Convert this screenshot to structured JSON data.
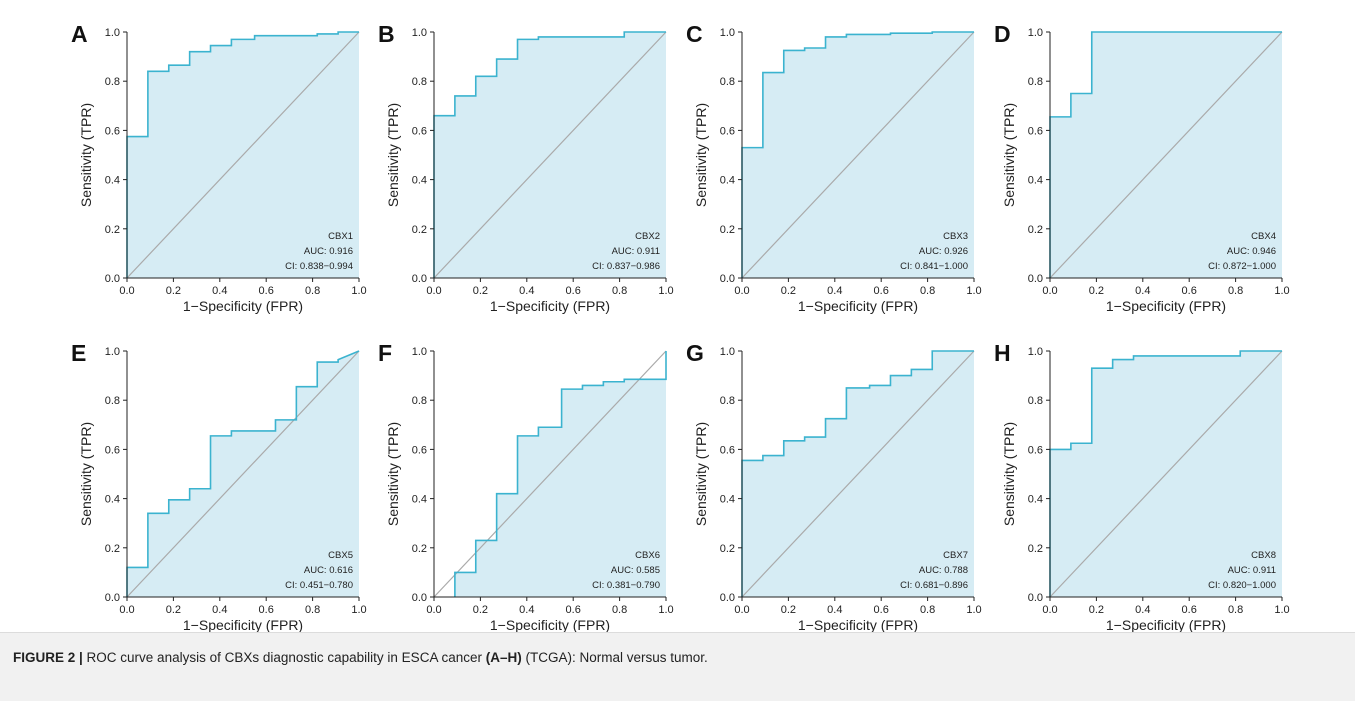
{
  "colors": {
    "curve": "#3bb3cf",
    "fill": "#d6ecf4",
    "diagonal": "#aaaaaa",
    "axis": "#222222"
  },
  "caption": {
    "label": "FIGURE 2 |",
    "text_before": " ROC curve analysis of CBXs diagnostic capability in ESCA cancer ",
    "bold_mid": "(A–H)",
    "text_after": " (TCGA): Normal versus tumor."
  },
  "chart_data": [
    {
      "type": "line",
      "panel": "A",
      "title": "",
      "xlabel": "1−Specificity (FPR)",
      "ylabel": "Sensitivity (TPR)",
      "xlim": [
        0,
        1
      ],
      "ylim": [
        0,
        1
      ],
      "xticks": [
        "0.0",
        "0.2",
        "0.4",
        "0.6",
        "0.8",
        "1.0"
      ],
      "yticks": [
        "0.0",
        "0.2",
        "0.4",
        "0.6",
        "0.8",
        "1.0"
      ],
      "series": [
        {
          "name": "CBX1",
          "x": [
            0,
            0,
            0.09,
            0.09,
            0.18,
            0.18,
            0.27,
            0.27,
            0.36,
            0.36,
            0.45,
            0.45,
            0.55,
            0.55,
            0.82,
            0.82,
            0.91,
            0.91,
            1.0
          ],
          "y": [
            0,
            0.575,
            0.575,
            0.84,
            0.84,
            0.865,
            0.865,
            0.92,
            0.92,
            0.945,
            0.945,
            0.97,
            0.97,
            0.985,
            0.985,
            0.992,
            0.992,
            1.0,
            1.0
          ]
        }
      ],
      "annotations": [
        "CBX1",
        "AUC: 0.916",
        "CI: 0.838−0.994"
      ]
    },
    {
      "type": "line",
      "panel": "B",
      "title": "",
      "xlabel": "1−Specificity (FPR)",
      "ylabel": "Sensitivity (TPR)",
      "xlim": [
        0,
        1
      ],
      "ylim": [
        0,
        1
      ],
      "xticks": [
        "0.0",
        "0.2",
        "0.4",
        "0.6",
        "0.8",
        "1.0"
      ],
      "yticks": [
        "0.0",
        "0.2",
        "0.4",
        "0.6",
        "0.8",
        "1.0"
      ],
      "series": [
        {
          "name": "CBX2",
          "x": [
            0,
            0,
            0.09,
            0.09,
            0.18,
            0.18,
            0.27,
            0.27,
            0.36,
            0.36,
            0.45,
            0.45,
            0.82,
            0.82,
            0.91,
            0.91,
            1.0
          ],
          "y": [
            0,
            0.66,
            0.66,
            0.74,
            0.74,
            0.82,
            0.82,
            0.89,
            0.89,
            0.97,
            0.97,
            0.98,
            0.98,
            1.0,
            1.0,
            1.0,
            1.0
          ]
        }
      ],
      "annotations": [
        "CBX2",
        "AUC: 0.911",
        "CI: 0.837−0.986"
      ]
    },
    {
      "type": "line",
      "panel": "C",
      "title": "",
      "xlabel": "1−Specificity (FPR)",
      "ylabel": "Sensitivity (TPR)",
      "xlim": [
        0,
        1
      ],
      "ylim": [
        0,
        1
      ],
      "xticks": [
        "0.0",
        "0.2",
        "0.4",
        "0.6",
        "0.8",
        "1.0"
      ],
      "yticks": [
        "0.0",
        "0.2",
        "0.4",
        "0.6",
        "0.8",
        "1.0"
      ],
      "series": [
        {
          "name": "CBX3",
          "x": [
            0,
            0,
            0.09,
            0.09,
            0.18,
            0.18,
            0.27,
            0.27,
            0.36,
            0.36,
            0.45,
            0.45,
            0.64,
            0.64,
            0.82,
            0.82,
            1.0
          ],
          "y": [
            0,
            0.53,
            0.53,
            0.835,
            0.835,
            0.925,
            0.925,
            0.935,
            0.935,
            0.98,
            0.98,
            0.99,
            0.99,
            0.995,
            0.995,
            1.0,
            1.0
          ]
        }
      ],
      "annotations": [
        "CBX3",
        "AUC: 0.926",
        "CI: 0.841−1.000"
      ]
    },
    {
      "type": "line",
      "panel": "D",
      "title": "",
      "xlabel": "1−Specificity (FPR)",
      "ylabel": "Sensitivity (TPR)",
      "xlim": [
        0,
        1
      ],
      "ylim": [
        0,
        1
      ],
      "xticks": [
        "0.0",
        "0.2",
        "0.4",
        "0.6",
        "0.8",
        "1.0"
      ],
      "yticks": [
        "0.0",
        "0.2",
        "0.4",
        "0.6",
        "0.8",
        "1.0"
      ],
      "series": [
        {
          "name": "CBX4",
          "x": [
            0,
            0,
            0.09,
            0.09,
            0.18,
            0.18,
            1.0
          ],
          "y": [
            0,
            0.655,
            0.655,
            0.75,
            0.75,
            1.0,
            1.0
          ]
        }
      ],
      "annotations": [
        "CBX4",
        "AUC: 0.946",
        "CI: 0.872−1.000"
      ]
    },
    {
      "type": "line",
      "panel": "E",
      "title": "",
      "xlabel": "1−Specificity (FPR)",
      "ylabel": "Sensitivity (TPR)",
      "xlim": [
        0,
        1
      ],
      "ylim": [
        0,
        1
      ],
      "xticks": [
        "0.0",
        "0.2",
        "0.4",
        "0.6",
        "0.8",
        "1.0"
      ],
      "yticks": [
        "0.0",
        "0.2",
        "0.4",
        "0.6",
        "0.8",
        "1.0"
      ],
      "series": [
        {
          "name": "CBX5",
          "x": [
            0,
            0,
            0.09,
            0.09,
            0.18,
            0.18,
            0.27,
            0.27,
            0.36,
            0.36,
            0.45,
            0.45,
            0.64,
            0.64,
            0.73,
            0.73,
            0.82,
            0.82,
            0.91,
            0.91,
            1.0
          ],
          "y": [
            0,
            0.12,
            0.12,
            0.34,
            0.34,
            0.395,
            0.395,
            0.44,
            0.44,
            0.655,
            0.655,
            0.675,
            0.675,
            0.72,
            0.72,
            0.855,
            0.855,
            0.955,
            0.955,
            0.965,
            1.0
          ]
        }
      ],
      "annotations": [
        "CBX5",
        "AUC: 0.616",
        "CI: 0.451−0.780"
      ]
    },
    {
      "type": "line",
      "panel": "F",
      "title": "",
      "xlabel": "1−Specificity (FPR)",
      "ylabel": "Sensitivity (TPR)",
      "xlim": [
        0,
        1
      ],
      "ylim": [
        0,
        1
      ],
      "xticks": [
        "0.0",
        "0.2",
        "0.4",
        "0.6",
        "0.8",
        "1.0"
      ],
      "yticks": [
        "0.0",
        "0.2",
        "0.4",
        "0.6",
        "0.8",
        "1.0"
      ],
      "series": [
        {
          "name": "CBX6",
          "x": [
            0.09,
            0.09,
            0.18,
            0.18,
            0.27,
            0.27,
            0.36,
            0.36,
            0.45,
            0.45,
            0.55,
            0.55,
            0.64,
            0.64,
            0.73,
            0.73,
            0.82,
            0.82,
            1.0,
            1.0
          ],
          "y": [
            0,
            0.1,
            0.1,
            0.23,
            0.23,
            0.42,
            0.42,
            0.655,
            0.655,
            0.69,
            0.69,
            0.845,
            0.845,
            0.86,
            0.86,
            0.875,
            0.875,
            0.885,
            0.885,
            1.0
          ]
        }
      ],
      "annotations": [
        "CBX6",
        "AUC: 0.585",
        "CI: 0.381−0.790"
      ]
    },
    {
      "type": "line",
      "panel": "G",
      "title": "",
      "xlabel": "1−Specificity (FPR)",
      "ylabel": "Sensitivity (TPR)",
      "xlim": [
        0,
        1
      ],
      "ylim": [
        0,
        1
      ],
      "xticks": [
        "0.0",
        "0.2",
        "0.4",
        "0.6",
        "0.8",
        "1.0"
      ],
      "yticks": [
        "0.0",
        "0.2",
        "0.4",
        "0.6",
        "0.8",
        "1.0"
      ],
      "series": [
        {
          "name": "CBX7",
          "x": [
            0,
            0,
            0.09,
            0.09,
            0.18,
            0.18,
            0.27,
            0.27,
            0.36,
            0.36,
            0.45,
            0.45,
            0.55,
            0.55,
            0.64,
            0.64,
            0.73,
            0.73,
            0.82,
            0.82,
            1.0
          ],
          "y": [
            0,
            0.555,
            0.555,
            0.575,
            0.575,
            0.635,
            0.635,
            0.65,
            0.65,
            0.725,
            0.725,
            0.85,
            0.85,
            0.86,
            0.86,
            0.9,
            0.9,
            0.925,
            0.925,
            1.0,
            1.0
          ]
        }
      ],
      "annotations": [
        "CBX7",
        "AUC: 0.788",
        "CI: 0.681−0.896"
      ]
    },
    {
      "type": "line",
      "panel": "H",
      "title": "",
      "xlabel": "1−Specificity (FPR)",
      "ylabel": "Sensitivity (TPR)",
      "xlim": [
        0,
        1
      ],
      "ylim": [
        0,
        1
      ],
      "xticks": [
        "0.0",
        "0.2",
        "0.4",
        "0.6",
        "0.8",
        "1.0"
      ],
      "yticks": [
        "0.0",
        "0.2",
        "0.4",
        "0.6",
        "0.8",
        "1.0"
      ],
      "series": [
        {
          "name": "CBX8",
          "x": [
            0,
            0,
            0.09,
            0.09,
            0.18,
            0.18,
            0.27,
            0.27,
            0.36,
            0.36,
            0.82,
            0.82,
            1.0
          ],
          "y": [
            0,
            0.6,
            0.6,
            0.625,
            0.625,
            0.93,
            0.93,
            0.965,
            0.965,
            0.98,
            0.98,
            1.0,
            1.0
          ]
        }
      ],
      "annotations": [
        "CBX8",
        "AUC: 0.911",
        "CI: 0.820−1.000"
      ]
    }
  ]
}
